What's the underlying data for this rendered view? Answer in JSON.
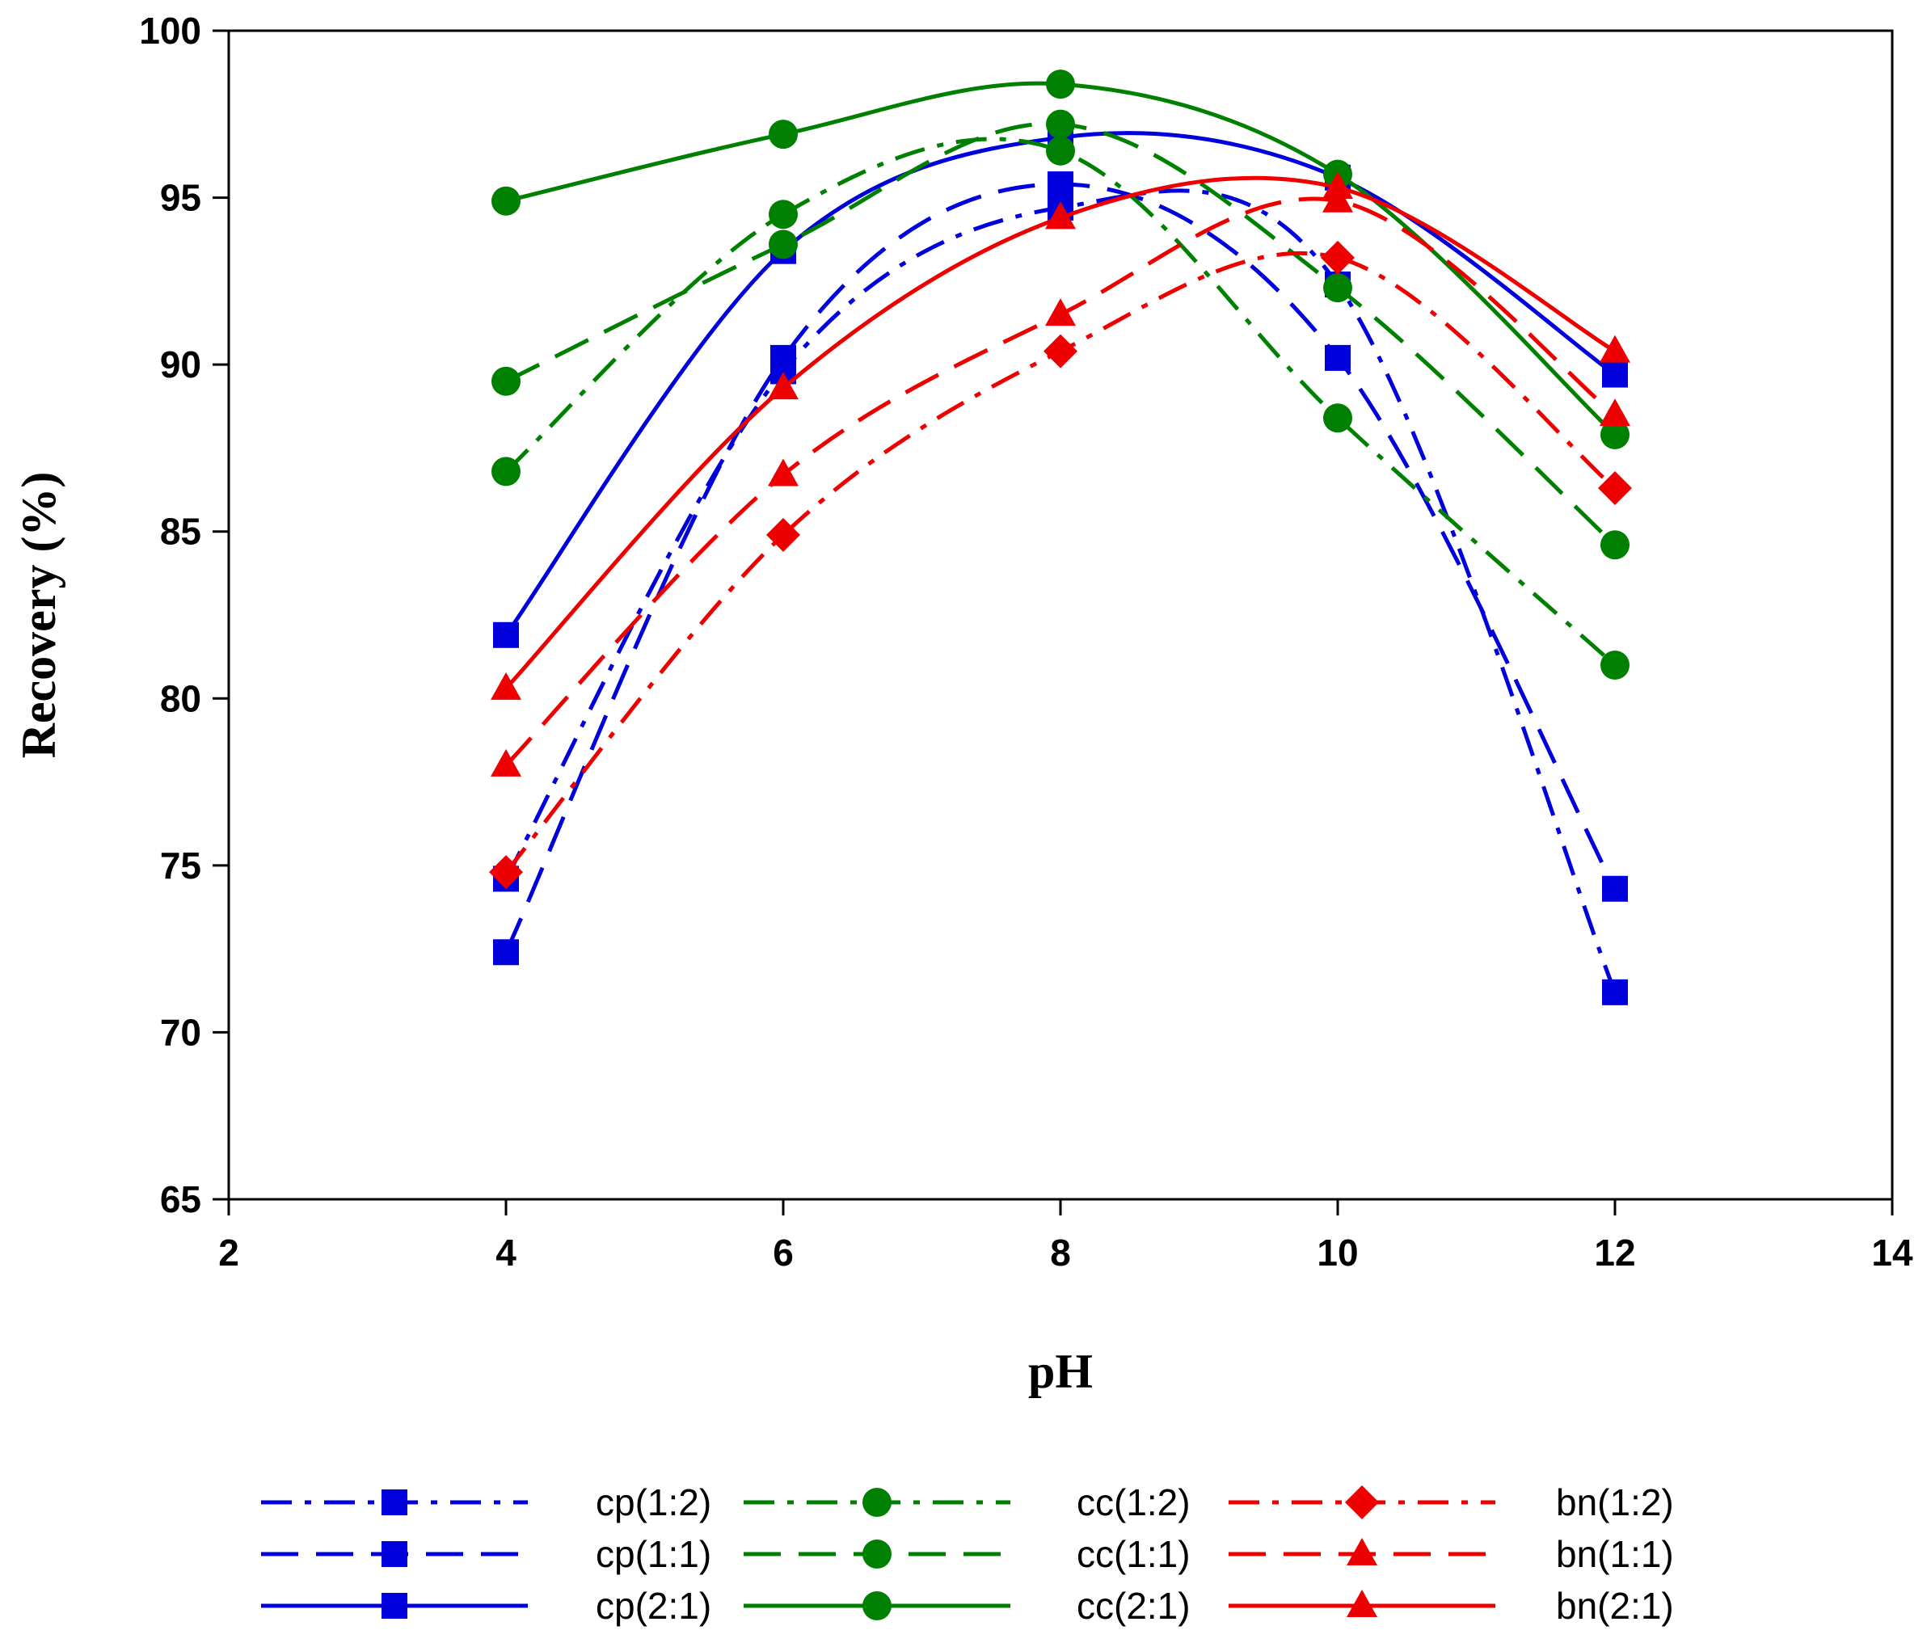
{
  "chart_data": {
    "type": "line",
    "title": "",
    "xlabel": "pH",
    "ylabel": "Recovery (%)",
    "xlim": [
      2,
      14
    ],
    "ylim": [
      65,
      100
    ],
    "x_ticks": [
      2,
      4,
      6,
      8,
      10,
      12,
      14
    ],
    "y_ticks": [
      65,
      70,
      75,
      80,
      85,
      90,
      95,
      100
    ],
    "x": [
      4,
      6,
      8,
      10,
      12
    ],
    "grid": false,
    "legend_position": "bottom",
    "series": [
      {
        "name": "cp(1:2)",
        "color": "#0000dd",
        "linestyle": "dashdot",
        "marker": "square",
        "values": [
          74.6,
          89.8,
          94.7,
          92.4,
          71.2
        ]
      },
      {
        "name": "cp(1:1)",
        "color": "#0000dd",
        "linestyle": "dashed",
        "marker": "square",
        "values": [
          72.4,
          90.2,
          95.4,
          90.2,
          74.3
        ]
      },
      {
        "name": "cp(2:1)",
        "color": "#0000dd",
        "linestyle": "solid",
        "marker": "square",
        "values": [
          81.9,
          93.4,
          96.8,
          95.6,
          89.7
        ]
      },
      {
        "name": "cc(1:2)",
        "color": "#008000",
        "linestyle": "dashdot",
        "marker": "circle",
        "values": [
          86.8,
          94.5,
          96.4,
          88.4,
          81.0
        ]
      },
      {
        "name": "cc(1:1)",
        "color": "#008000",
        "linestyle": "dashed",
        "marker": "circle",
        "values": [
          89.5,
          93.6,
          97.2,
          92.3,
          84.6
        ]
      },
      {
        "name": "cc(2:1)",
        "color": "#008000",
        "linestyle": "solid",
        "marker": "circle",
        "values": [
          94.9,
          96.9,
          98.4,
          95.7,
          87.9
        ]
      },
      {
        "name": "bn(1:2)",
        "color": "#ee0000",
        "linestyle": "dashdot",
        "marker": "diamond",
        "values": [
          74.8,
          84.9,
          90.4,
          93.2,
          86.3
        ]
      },
      {
        "name": "bn(1:1)",
        "color": "#ee0000",
        "linestyle": "dashed",
        "marker": "triangle",
        "values": [
          78.0,
          86.7,
          91.5,
          94.9,
          88.5
        ]
      },
      {
        "name": "bn(2:1)",
        "color": "#ee0000",
        "linestyle": "solid",
        "marker": "triangle",
        "values": [
          80.3,
          89.3,
          94.4,
          95.3,
          90.4
        ]
      }
    ]
  }
}
